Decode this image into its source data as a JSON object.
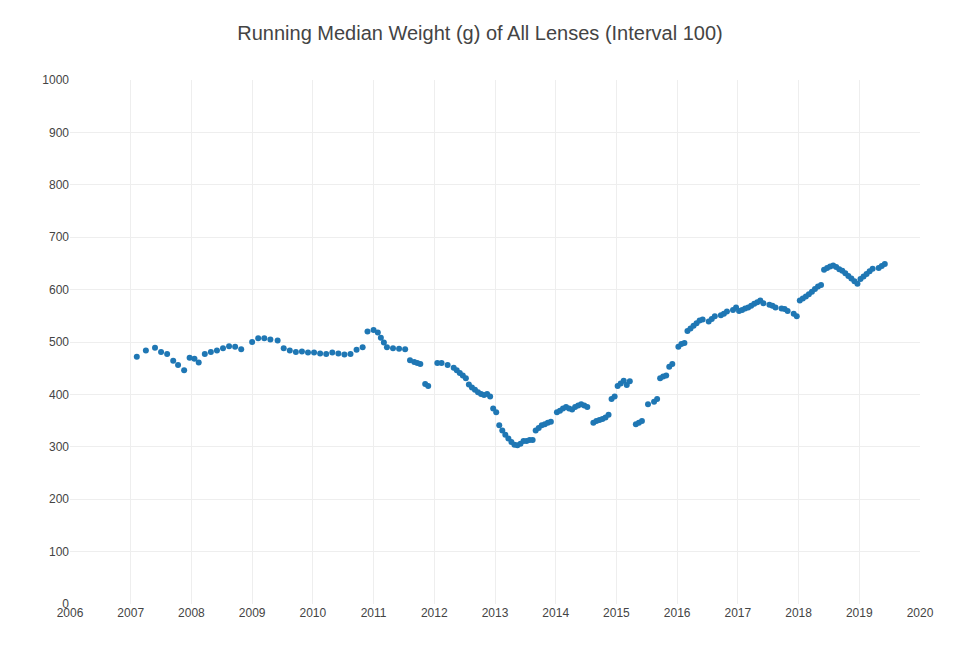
{
  "chart_data": {
    "type": "scatter",
    "title": "Running Median Weight (g) of All Lenses (Interval 100)",
    "xlim": [
      2006,
      2020
    ],
    "ylim": [
      0,
      1000
    ],
    "xticks": [
      2006,
      2007,
      2008,
      2009,
      2010,
      2011,
      2012,
      2013,
      2014,
      2015,
      2016,
      2017,
      2018,
      2019,
      2020
    ],
    "yticks": [
      0,
      100,
      200,
      300,
      400,
      500,
      600,
      700,
      800,
      900,
      1000
    ],
    "grid": true,
    "x": [
      2007.1,
      2007.25,
      2007.4,
      2007.5,
      2007.6,
      2007.7,
      2007.78,
      2007.88,
      2007.97,
      2008.05,
      2008.12,
      2008.22,
      2008.32,
      2008.42,
      2008.52,
      2008.62,
      2008.72,
      2008.82,
      2009.0,
      2009.1,
      2009.2,
      2009.3,
      2009.42,
      2009.52,
      2009.62,
      2009.72,
      2009.82,
      2009.92,
      2010.02,
      2010.12,
      2010.22,
      2010.32,
      2010.42,
      2010.52,
      2010.62,
      2010.72,
      2010.82,
      2010.9,
      2011.0,
      2011.07,
      2011.12,
      2011.17,
      2011.22,
      2011.32,
      2011.42,
      2011.52,
      2011.6,
      2011.67,
      2011.72,
      2011.77,
      2011.85,
      2011.9,
      2012.05,
      2012.12,
      2012.22,
      2012.32,
      2012.37,
      2012.42,
      2012.47,
      2012.52,
      2012.57,
      2012.62,
      2012.67,
      2012.72,
      2012.77,
      2012.82,
      2012.87,
      2012.92,
      2012.97,
      2013.02,
      2013.07,
      2013.12,
      2013.17,
      2013.22,
      2013.27,
      2013.32,
      2013.37,
      2013.42,
      2013.47,
      2013.52,
      2013.57,
      2013.62,
      2013.67,
      2013.72,
      2013.77,
      2013.82,
      2013.87,
      2013.92,
      2014.02,
      2014.07,
      2014.12,
      2014.17,
      2014.22,
      2014.27,
      2014.32,
      2014.37,
      2014.42,
      2014.47,
      2014.52,
      2014.62,
      2014.67,
      2014.72,
      2014.77,
      2014.82,
      2014.87,
      2014.92,
      2014.97,
      2015.02,
      2015.07,
      2015.12,
      2015.17,
      2015.22,
      2015.32,
      2015.37,
      2015.42,
      2015.52,
      2015.62,
      2015.67,
      2015.72,
      2015.77,
      2015.82,
      2015.87,
      2015.92,
      2016.02,
      2016.07,
      2016.12,
      2016.17,
      2016.22,
      2016.27,
      2016.32,
      2016.37,
      2016.42,
      2016.52,
      2016.57,
      2016.62,
      2016.72,
      2016.77,
      2016.82,
      2016.92,
      2016.97,
      2017.02,
      2017.07,
      2017.12,
      2017.17,
      2017.22,
      2017.27,
      2017.32,
      2017.37,
      2017.42,
      2017.52,
      2017.57,
      2017.62,
      2017.72,
      2017.77,
      2017.82,
      2017.92,
      2017.97,
      2018.02,
      2018.07,
      2018.12,
      2018.17,
      2018.22,
      2018.27,
      2018.32,
      2018.37,
      2018.42,
      2018.47,
      2018.52,
      2018.57,
      2018.62,
      2018.67,
      2018.72,
      2018.77,
      2018.82,
      2018.87,
      2018.92,
      2018.97,
      2019.02,
      2019.07,
      2019.12,
      2019.17,
      2019.22,
      2019.32,
      2019.37,
      2019.42
    ],
    "values": [
      472,
      484,
      489,
      481,
      477,
      464,
      456,
      446,
      470,
      468,
      461,
      477,
      481,
      484,
      488,
      492,
      491,
      486,
      500,
      507,
      507,
      505,
      503,
      488,
      484,
      481,
      482,
      480,
      480,
      478,
      477,
      480,
      478,
      476,
      477,
      485,
      490,
      520,
      523,
      518,
      508,
      499,
      490,
      488,
      487,
      486,
      465,
      462,
      460,
      458,
      420,
      416,
      460,
      460,
      456,
      451,
      446,
      441,
      436,
      431,
      419,
      413,
      409,
      404,
      401,
      399,
      401,
      396,
      373,
      366,
      341,
      331,
      323,
      316,
      309,
      304,
      303,
      306,
      311,
      311,
      313,
      313,
      331,
      336,
      341,
      343,
      346,
      348,
      366,
      369,
      373,
      376,
      373,
      371,
      376,
      379,
      381,
      379,
      376,
      346,
      349,
      351,
      353,
      356,
      361,
      391,
      396,
      416,
      421,
      426,
      418,
      425,
      343,
      346,
      349,
      381,
      386,
      391,
      431,
      434,
      436,
      453,
      458,
      491,
      496,
      498,
      521,
      526,
      531,
      536,
      541,
      543,
      539,
      544,
      549,
      551,
      554,
      558,
      561,
      566,
      559,
      561,
      564,
      566,
      569,
      573,
      576,
      579,
      574,
      571,
      569,
      566,
      564,
      563,
      559,
      554,
      549,
      579,
      583,
      587,
      591,
      596,
      601,
      606,
      609,
      638,
      641,
      644,
      646,
      643,
      639,
      636,
      631,
      626,
      621,
      616,
      611,
      620,
      625,
      630,
      635,
      640,
      641,
      645,
      649
    ]
  }
}
